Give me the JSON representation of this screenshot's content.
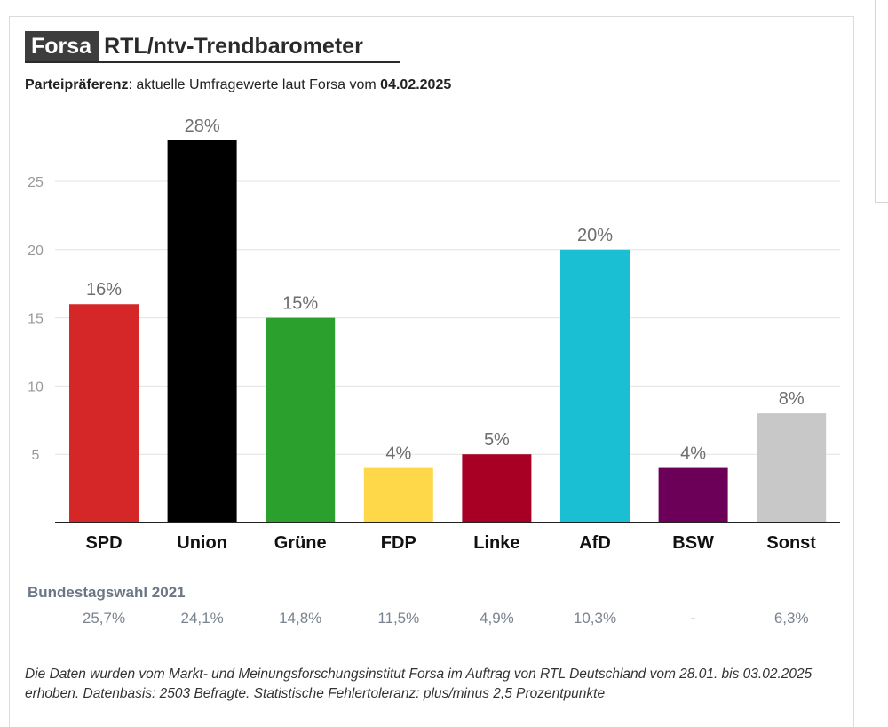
{
  "header": {
    "brand": "Forsa",
    "title": "RTL/ntv-Trendbarometer",
    "subtitle_bold": "Parteipräferenz",
    "subtitle_text": ": aktuelle Umfragewerte laut Forsa vom ",
    "subtitle_date": "04.02.2025"
  },
  "chart_data": {
    "type": "bar",
    "categories": [
      "SPD",
      "Union",
      "Grüne",
      "FDP",
      "Linke",
      "AfD",
      "BSW",
      "Sonst"
    ],
    "values": [
      16,
      28,
      15,
      4,
      5,
      20,
      4,
      8
    ],
    "data_labels": [
      "16%",
      "28%",
      "15%",
      "4%",
      "5%",
      "20%",
      "4%",
      "8%"
    ],
    "colors": [
      "#d62728",
      "#000000",
      "#2ca02c",
      "#ffd84a",
      "#a80024",
      "#1bbfd4",
      "#6c0059",
      "#c8c8c8"
    ],
    "yticks": [
      5,
      10,
      15,
      20,
      25
    ],
    "ylim": [
      0,
      28
    ],
    "grid": true
  },
  "previous_election": {
    "title": "Bundestagswahl 2021",
    "values": [
      "25,7%",
      "24,1%",
      "14,8%",
      "11,5%",
      "4,9%",
      "10,3%",
      "-",
      "6,3%"
    ]
  },
  "footnote": "Die Daten wurden vom Markt- und Meinungsforschungsinstitut Forsa im Auftrag von RTL Deutschland vom 28.01. bis 03.02.2025 erhoben. Datenbasis: 2503 Befragte. Statistische Fehlertoleranz: plus/minus 2,5 Prozentpunkte"
}
